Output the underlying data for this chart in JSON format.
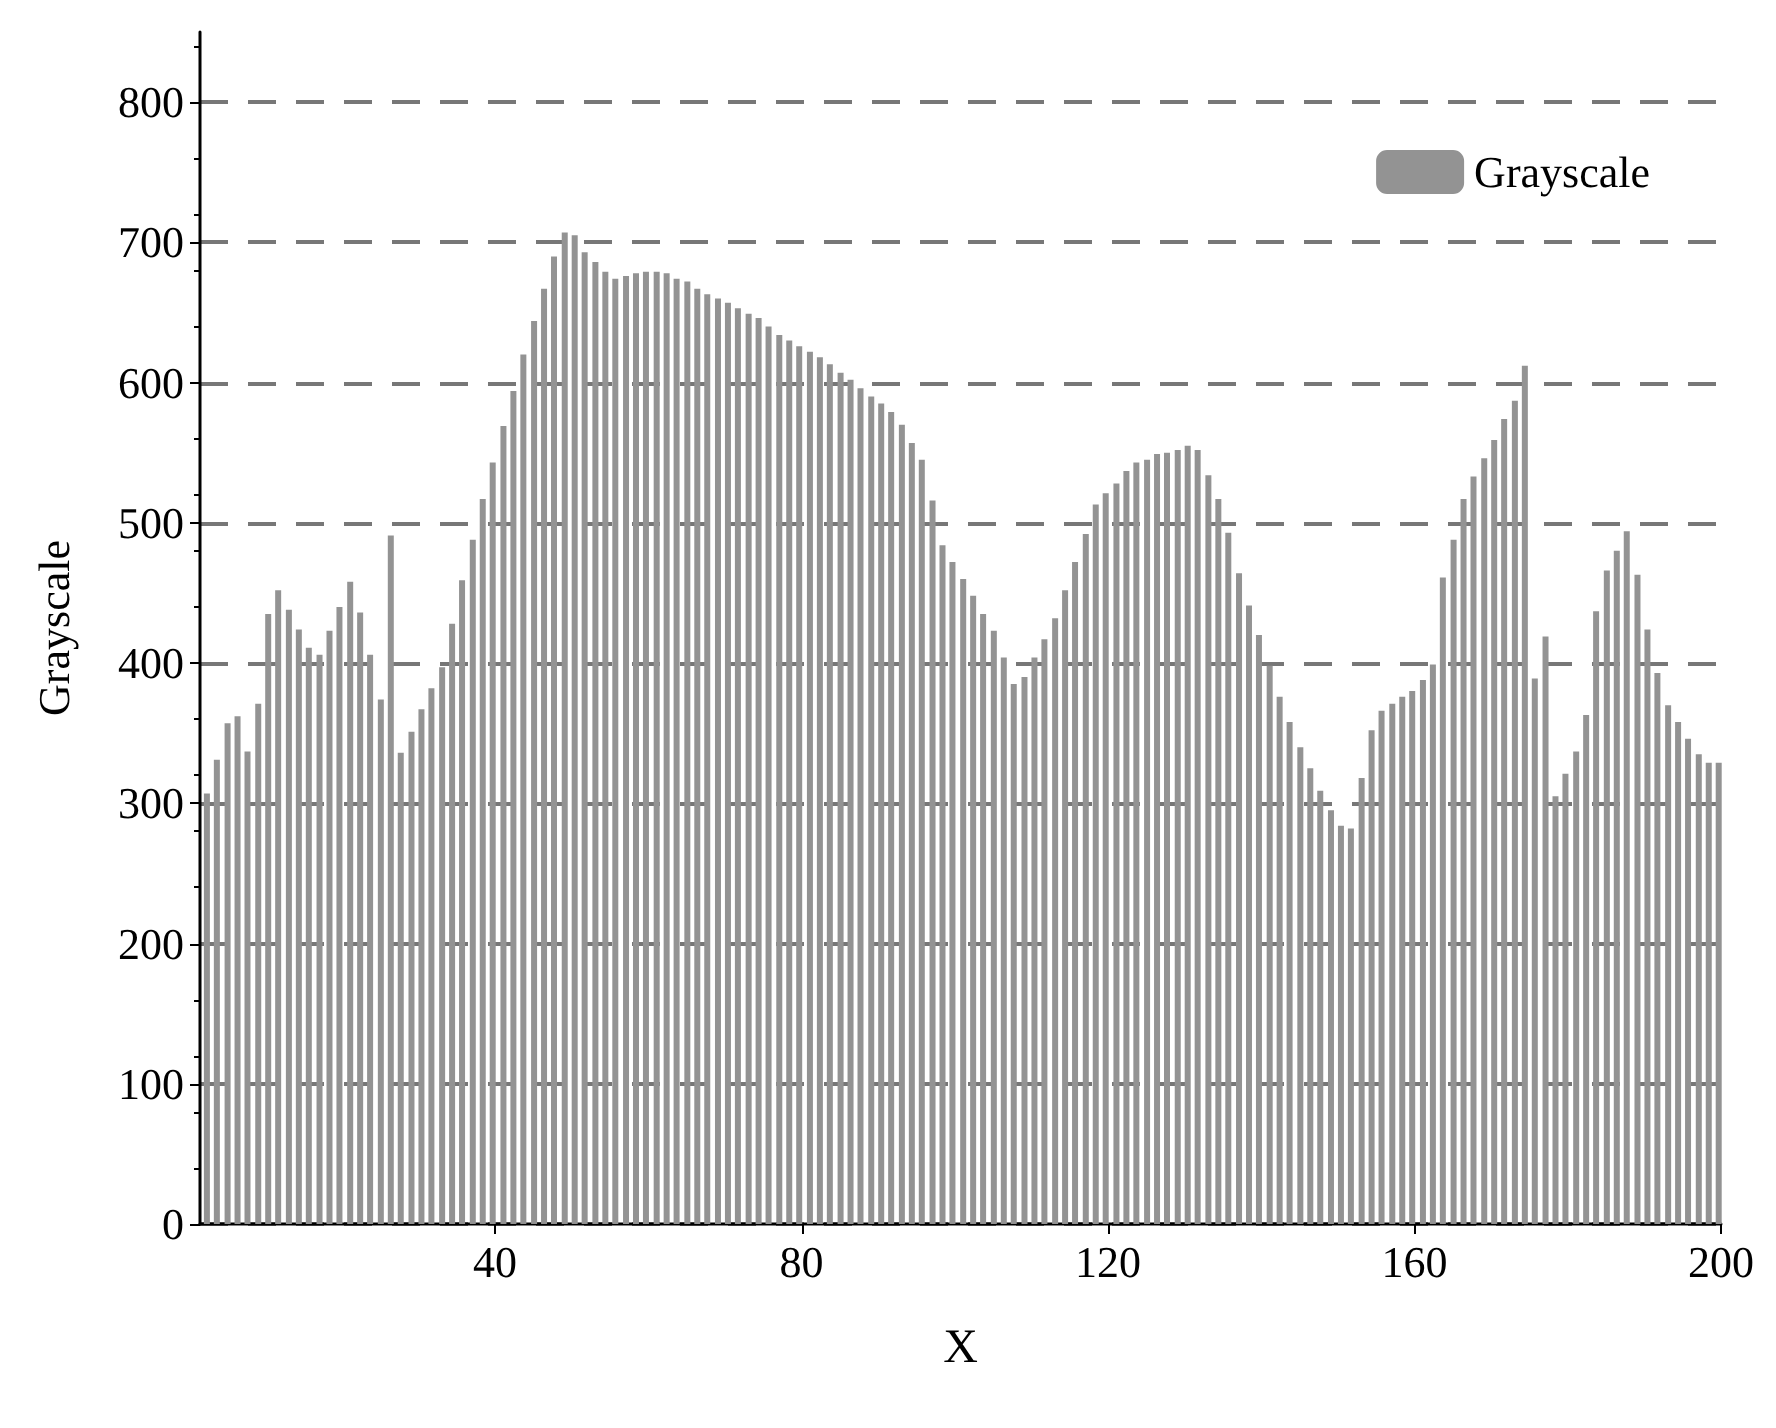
{
  "chart_data": {
    "type": "bar",
    "xlabel": "X",
    "ylabel": "Grayscale",
    "x": [
      2.4,
      3.7,
      5.1,
      6.4,
      7.7,
      9.1,
      10.4,
      11.7,
      13.1,
      14.4,
      15.7,
      17.1,
      18.4,
      19.7,
      21.1,
      22.4,
      23.7,
      25.1,
      26.4,
      27.7,
      29.1,
      30.4,
      31.7,
      33.1,
      34.4,
      35.7,
      37.1,
      38.4,
      39.7,
      41.1,
      42.4,
      43.7,
      45.1,
      46.4,
      47.7,
      49.1,
      50.4,
      51.7,
      53.1,
      54.4,
      55.7,
      57.1,
      58.4,
      59.7,
      61.1,
      62.4,
      63.7,
      65.1,
      66.4,
      67.7,
      69.1,
      70.4,
      71.7,
      73.1,
      74.4,
      75.7,
      77.1,
      78.4,
      79.7,
      81.1,
      82.4,
      83.7,
      85.1,
      86.4,
      87.7,
      89.1,
      90.4,
      91.7,
      93.1,
      94.4,
      95.7,
      97.1,
      98.4,
      99.7,
      101.1,
      102.4,
      103.7,
      105.1,
      106.4,
      107.7,
      109.1,
      110.4,
      111.7,
      113.1,
      114.4,
      115.7,
      117.1,
      118.4,
      119.7,
      121.1,
      122.4,
      123.7,
      125.1,
      126.4,
      127.7,
      129.1,
      130.4,
      131.7,
      133.1,
      134.4,
      135.7,
      137.1,
      138.4,
      139.7,
      141.1,
      142.4,
      143.7,
      145.1,
      146.4,
      147.7,
      149.1,
      150.4,
      151.7,
      153.1,
      154.4,
      155.7,
      157.1,
      158.4,
      159.7,
      161.1,
      162.4,
      163.7,
      165.1,
      166.4,
      167.7,
      169.1,
      170.4,
      171.7,
      173.1,
      174.4,
      175.7,
      177.1,
      178.4,
      179.7,
      181.1,
      182.4,
      183.7,
      185.1,
      186.4,
      187.7,
      189.1,
      190.4,
      191.7,
      193.1,
      194.4,
      195.7,
      197.1,
      198.4,
      199.7
    ],
    "series": [
      {
        "name": "Grayscale",
        "color": "#939393",
        "values": [
          307,
          331,
          357,
          362,
          337,
          371,
          435,
          452,
          438,
          424,
          411,
          406,
          423,
          440,
          458,
          436,
          406,
          374,
          491,
          336,
          351,
          367,
          382,
          397,
          428,
          459,
          488,
          517,
          543,
          569,
          594,
          620,
          644,
          667,
          690,
          707,
          705,
          693,
          686,
          679,
          674,
          676,
          678,
          679,
          679,
          678,
          674,
          672,
          667,
          663,
          660,
          657,
          653,
          649,
          646,
          640,
          634,
          630,
          626,
          622,
          618,
          613,
          607,
          602,
          596,
          590,
          585,
          579,
          570,
          557,
          545,
          516,
          484,
          472,
          460,
          448,
          435,
          423,
          404,
          385,
          390,
          404,
          417,
          432,
          452,
          472,
          492,
          513,
          521,
          528,
          537,
          543,
          545,
          549,
          550,
          552,
          555,
          552,
          534,
          517,
          493,
          464,
          441,
          420,
          398,
          376,
          358,
          340,
          325,
          309,
          295,
          284,
          282,
          318,
          352,
          366,
          371,
          376,
          380,
          388,
          399,
          461,
          488,
          517,
          533,
          546,
          559,
          574,
          587,
          612,
          389,
          419,
          305,
          321,
          337,
          363,
          437,
          466,
          480,
          494,
          463,
          424,
          393,
          370,
          358,
          346,
          335,
          329,
          329
        ]
      }
    ],
    "xlim": [
      1.5,
      200
    ],
    "xticks": [
      40,
      80,
      120,
      160,
      200
    ],
    "ylim": [
      0,
      850
    ],
    "yticks": [
      0,
      100,
      200,
      300,
      400,
      500,
      600,
      700,
      800
    ],
    "grid": "y",
    "legend": "top right"
  }
}
